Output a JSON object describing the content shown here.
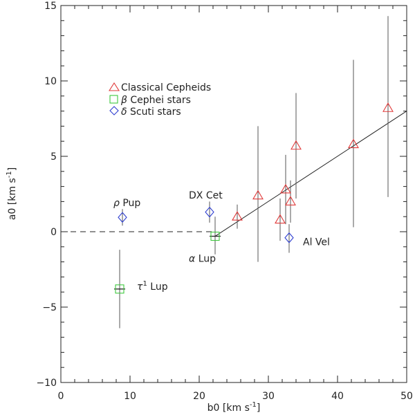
{
  "chart_data": {
    "type": "scatter",
    "title": "",
    "xlabel": "b0 [km s",
    "xlabel_sup": "-1",
    "xlabel_close": "]",
    "ylabel": "a0 [km s",
    "ylabel_sup": "-1",
    "ylabel_close": "]",
    "xlim": [
      0,
      50
    ],
    "ylim": [
      -10,
      15
    ],
    "x_ticks": [
      0,
      10,
      20,
      30,
      40,
      50
    ],
    "y_ticks": [
      -10,
      -5,
      0,
      5,
      10,
      15
    ],
    "x_tick_labels": [
      "0",
      "10",
      "20",
      "30",
      "40",
      "50"
    ],
    "y_tick_labels": [
      "−10",
      "−5",
      "0",
      "5",
      "10",
      "15"
    ],
    "legend": [
      {
        "symbol": "triangle",
        "color": "#e03a3a",
        "label": "Classical Cepheids"
      },
      {
        "symbol": "square",
        "color": "#3ec83e",
        "prefix": "β",
        "label": "Cephei stars"
      },
      {
        "symbol": "diamond",
        "color": "#2f3fd0",
        "prefix": "δ",
        "label": "Scuti stars"
      }
    ],
    "series": [
      {
        "name": "Classical Cepheids",
        "symbol": "triangle",
        "color": "#e03a3a",
        "points": [
          {
            "x": 25.5,
            "y": 1.0,
            "ylo": 0.2,
            "yhi": 1.8
          },
          {
            "x": 28.5,
            "y": 2.4,
            "ylo": -2.0,
            "yhi": 7.0
          },
          {
            "x": 31.7,
            "y": 0.8,
            "ylo": -0.6,
            "yhi": 2.2
          },
          {
            "x": 32.5,
            "y": 2.8,
            "ylo": 0.5,
            "yhi": 5.1
          },
          {
            "x": 33.2,
            "y": 2.0,
            "ylo": 0.6,
            "yhi": 3.4
          },
          {
            "x": 34.0,
            "y": 5.7,
            "ylo": 2.2,
            "yhi": 9.2
          },
          {
            "x": 42.3,
            "y": 5.8,
            "ylo": 0.3,
            "yhi": 11.4
          },
          {
            "x": 47.3,
            "y": 8.2,
            "ylo": 2.3,
            "yhi": 14.3
          }
        ]
      },
      {
        "name": "Cephei stars",
        "symbol": "square",
        "color": "#3ec83e",
        "points": [
          {
            "x": 22.3,
            "y": -0.3,
            "ylo": -1.5,
            "yhi": 1.0,
            "xerr": 0.8
          },
          {
            "x": 8.5,
            "y": -3.8,
            "ylo": -6.4,
            "yhi": -1.2,
            "xerr": 0.8
          }
        ]
      },
      {
        "name": "Scuti stars",
        "symbol": "diamond",
        "color": "#2f3fd0",
        "points": [
          {
            "x": 8.9,
            "y": 0.95,
            "ylo": 0.4,
            "yhi": 1.5
          },
          {
            "x": 21.5,
            "y": 1.3,
            "ylo": 0.6,
            "yhi": 2.0
          },
          {
            "x": 33.0,
            "y": -0.4,
            "ylo": -1.4,
            "yhi": 0.5
          }
        ]
      }
    ],
    "fit_line": {
      "x": [
        22.3,
        50
      ],
      "y": [
        -0.3,
        8.0
      ]
    },
    "zero_line": {
      "x": [
        0,
        22.3
      ],
      "y": [
        0,
        0
      ]
    },
    "annotations": [
      {
        "prefix": "ρ",
        "text": "Pup",
        "x": 7.6,
        "y": 1.7
      },
      {
        "text": "DX Cet",
        "x": 18.5,
        "y": 2.2
      },
      {
        "prefix": "α",
        "text": "Lup",
        "x": 18.5,
        "y": -2.0
      },
      {
        "text": "Al Vel",
        "x": 35.0,
        "y": -0.9
      },
      {
        "prefix": "τ",
        "sup": "1",
        "text": "Lup",
        "x": 11.0,
        "y": -3.85
      }
    ]
  }
}
